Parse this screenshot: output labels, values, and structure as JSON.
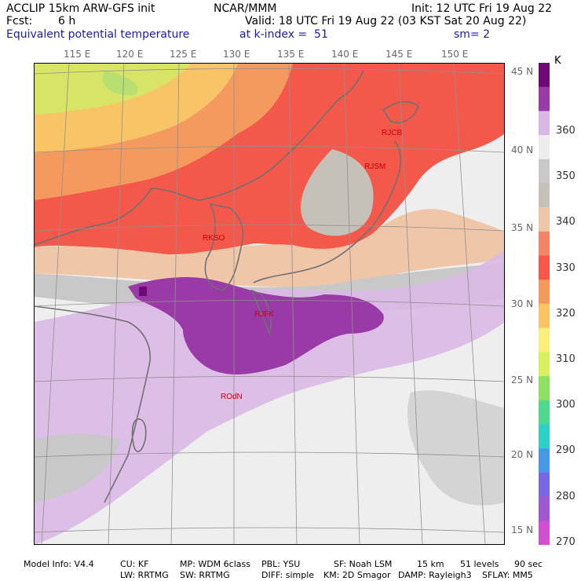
{
  "header": {
    "model": "ACCLIP 15km ARW-GFS init",
    "org": "NCAR/MMM",
    "init": "Init: 12 UTC Fri 19 Aug 22",
    "fcst_label": "Fcst:",
    "fcst_value": "6 h",
    "valid": "Valid: 18 UTC Fri 19 Aug 22 (03 KST Sat 20 Aug 22)",
    "field": "Equivalent potential temperature",
    "level": "at k-index =  51",
    "smooth": "sm= 2"
  },
  "longitude_labels": [
    "115 E",
    "120 E",
    "125 E",
    "130 E",
    "135 E",
    "140 E",
    "145 E",
    "150 E"
  ],
  "latitude_labels": [
    "45 N",
    "40 N",
    "35 N",
    "30 N",
    "25 N",
    "20 N",
    "15 N"
  ],
  "stations": [
    "RJCB",
    "RJSM",
    "RKSO",
    "RJFK",
    "ROdN"
  ],
  "colorbar": {
    "unit": "K",
    "labels": [
      "360",
      "350",
      "340",
      "330",
      "320",
      "310",
      "300",
      "290",
      "280",
      "270"
    ],
    "colors": [
      "#6e0a76",
      "#9a3aa6",
      "#dab8e6",
      "#ededed",
      "#c8c8c8",
      "#c5c0b8",
      "#f0c6a8",
      "#f28468",
      "#f4584a",
      "#f59a5e",
      "#f8c466",
      "#f8f07a",
      "#d8f060",
      "#8ee060",
      "#50d890",
      "#2ed0c8",
      "#4898e8",
      "#7868e0",
      "#a058d0",
      "#d050d0"
    ]
  },
  "footer": {
    "line1": [
      "Model Info: V4.4",
      "CU: KF",
      "MP: WDM 6class",
      "PBL: YSU",
      "SF: Noah LSM",
      "15 km",
      "51 levels",
      "90 sec"
    ],
    "line2": [
      "LW: RRTMG",
      "SW: RRTMG",
      "DIFF: simple",
      "KM: 2D Smagor",
      "DAMP: Rayleigh3",
      "SFLAY: MM5"
    ]
  }
}
